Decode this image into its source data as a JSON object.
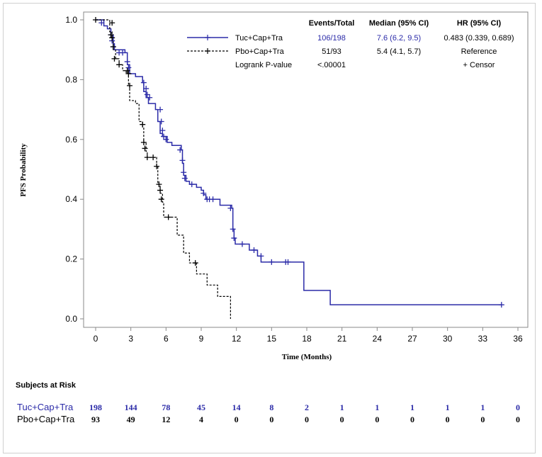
{
  "chart_data": {
    "type": "line",
    "subtype": "kaplan-meier",
    "xlabel": "Time (Months)",
    "ylabel": "PFS Probability",
    "xlim": [
      0,
      36
    ],
    "ylim": [
      0,
      1.0
    ],
    "xticks": [
      0,
      3,
      6,
      9,
      12,
      15,
      18,
      21,
      24,
      27,
      30,
      33,
      36
    ],
    "yticks": [
      "0.0",
      "0.2",
      "0.4",
      "0.6",
      "0.8",
      "1.0"
    ],
    "grid": false,
    "legend_position": "top-right",
    "legend": {
      "headers": [
        "Events/Total",
        "Median (95% CI)",
        "HR (95% CI)"
      ],
      "rows": [
        {
          "name": "Tuc+Cap+Tra",
          "events": "106/198",
          "median": "7.6 (6.2, 9.5)",
          "hr": "0.483 (0.339, 0.689)"
        },
        {
          "name": "Pbo+Cap+Tra",
          "events": "51/93",
          "median": "5.4 (4.1, 5.7)",
          "hr": "Reference"
        }
      ],
      "pvalue_label": "Logrank P-value",
      "pvalue": "<.00001",
      "censor_note": "+ Censor"
    },
    "series": [
      {
        "name": "Tuc+Cap+Tra",
        "color": "#2b2ba8",
        "line_style": "solid",
        "steps": [
          [
            0,
            1.0
          ],
          [
            0.7,
            0.98
          ],
          [
            1.0,
            0.97
          ],
          [
            1.3,
            0.95
          ],
          [
            1.5,
            0.92
          ],
          [
            1.6,
            0.9
          ],
          [
            2.5,
            0.89
          ],
          [
            2.7,
            0.85
          ],
          [
            2.9,
            0.82
          ],
          [
            3.4,
            0.81
          ],
          [
            4.0,
            0.79
          ],
          [
            4.1,
            0.76
          ],
          [
            4.3,
            0.74
          ],
          [
            4.5,
            0.72
          ],
          [
            5.1,
            0.7
          ],
          [
            5.3,
            0.66
          ],
          [
            5.5,
            0.62
          ],
          [
            5.7,
            0.61
          ],
          [
            6.1,
            0.59
          ],
          [
            6.5,
            0.58
          ],
          [
            7.3,
            0.565
          ],
          [
            7.4,
            0.52
          ],
          [
            7.5,
            0.48
          ],
          [
            7.7,
            0.46
          ],
          [
            8.0,
            0.45
          ],
          [
            8.6,
            0.44
          ],
          [
            9.0,
            0.43
          ],
          [
            9.2,
            0.415
          ],
          [
            9.4,
            0.4
          ],
          [
            10.6,
            0.38
          ],
          [
            11.6,
            0.37
          ],
          [
            11.7,
            0.3
          ],
          [
            11.8,
            0.27
          ],
          [
            11.9,
            0.25
          ],
          [
            13.1,
            0.23
          ],
          [
            13.8,
            0.21
          ],
          [
            14.1,
            0.19
          ],
          [
            17.75,
            0.095
          ],
          [
            20.0,
            0.047
          ],
          [
            34.6,
            0.047
          ]
        ],
        "censored": [
          [
            0.5,
            0.99
          ],
          [
            1.3,
            0.95
          ],
          [
            1.4,
            0.93
          ],
          [
            1.5,
            0.91
          ],
          [
            2.0,
            0.89
          ],
          [
            2.3,
            0.89
          ],
          [
            2.7,
            0.86
          ],
          [
            2.8,
            0.84
          ],
          [
            4.1,
            0.79
          ],
          [
            4.3,
            0.77
          ],
          [
            4.4,
            0.75
          ],
          [
            4.6,
            0.74
          ],
          [
            5.5,
            0.7
          ],
          [
            5.6,
            0.66
          ],
          [
            5.7,
            0.63
          ],
          [
            5.8,
            0.61
          ],
          [
            6.0,
            0.6
          ],
          [
            7.2,
            0.565
          ],
          [
            7.4,
            0.53
          ],
          [
            7.5,
            0.49
          ],
          [
            7.6,
            0.47
          ],
          [
            8.2,
            0.45
          ],
          [
            9.2,
            0.42
          ],
          [
            9.5,
            0.4
          ],
          [
            9.7,
            0.4
          ],
          [
            10.0,
            0.4
          ],
          [
            11.5,
            0.37
          ],
          [
            11.7,
            0.3
          ],
          [
            11.8,
            0.27
          ],
          [
            12.5,
            0.25
          ],
          [
            13.5,
            0.23
          ],
          [
            14.1,
            0.21
          ],
          [
            15.0,
            0.19
          ],
          [
            16.2,
            0.19
          ],
          [
            16.4,
            0.19
          ],
          [
            34.6,
            0.047
          ]
        ]
      },
      {
        "name": "Pbo+Cap+Tra",
        "color": "#000000",
        "line_style": "dashed",
        "steps": [
          [
            0,
            1.0
          ],
          [
            1.2,
            0.96
          ],
          [
            1.4,
            0.93
          ],
          [
            1.5,
            0.9
          ],
          [
            1.7,
            0.87
          ],
          [
            2.0,
            0.85
          ],
          [
            2.3,
            0.83
          ],
          [
            2.6,
            0.82
          ],
          [
            2.8,
            0.78
          ],
          [
            2.9,
            0.73
          ],
          [
            3.4,
            0.72
          ],
          [
            3.7,
            0.66
          ],
          [
            4.0,
            0.64
          ],
          [
            4.1,
            0.59
          ],
          [
            4.3,
            0.56
          ],
          [
            4.4,
            0.54
          ],
          [
            5.2,
            0.51
          ],
          [
            5.3,
            0.45
          ],
          [
            5.5,
            0.42
          ],
          [
            5.7,
            0.39
          ],
          [
            5.8,
            0.34
          ],
          [
            6.95,
            0.28
          ],
          [
            7.5,
            0.22
          ],
          [
            8.0,
            0.187
          ],
          [
            8.6,
            0.15
          ],
          [
            9.5,
            0.113
          ],
          [
            10.4,
            0.075
          ],
          [
            11.5,
            0.0
          ]
        ],
        "censored": [
          [
            0,
            1.0
          ],
          [
            1.4,
            0.99
          ],
          [
            1.3,
            0.95
          ],
          [
            1.4,
            0.94
          ],
          [
            1.5,
            0.91
          ],
          [
            1.6,
            0.87
          ],
          [
            2.0,
            0.85
          ],
          [
            2.7,
            0.83
          ],
          [
            2.8,
            0.82
          ],
          [
            2.9,
            0.78
          ],
          [
            4.0,
            0.65
          ],
          [
            4.1,
            0.59
          ],
          [
            4.2,
            0.57
          ],
          [
            4.4,
            0.54
          ],
          [
            4.9,
            0.54
          ],
          [
            5.2,
            0.51
          ],
          [
            5.4,
            0.45
          ],
          [
            5.5,
            0.43
          ],
          [
            5.6,
            0.4
          ],
          [
            6.2,
            0.34
          ],
          [
            8.5,
            0.187
          ]
        ]
      }
    ],
    "risk_table": {
      "title": "Subjects at Risk",
      "times": [
        0,
        3,
        6,
        9,
        12,
        15,
        18,
        21,
        24,
        27,
        30,
        33,
        36
      ],
      "rows": [
        {
          "name": "Tuc+Cap+Tra",
          "color": "#2b2ba8",
          "values": [
            198,
            144,
            78,
            45,
            14,
            8,
            2,
            1,
            1,
            1,
            1,
            1,
            0
          ]
        },
        {
          "name": "Pbo+Cap+Tra",
          "color": "#000000",
          "values": [
            93,
            49,
            12,
            4,
            0,
            0,
            0,
            0,
            0,
            0,
            0,
            0,
            0
          ]
        }
      ]
    }
  }
}
